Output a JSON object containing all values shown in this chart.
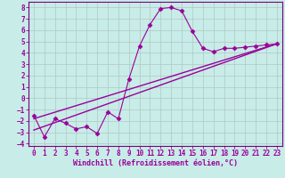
{
  "xlabel": "Windchill (Refroidissement éolien,°C)",
  "bg_color": "#c8ece8",
  "grid_color": "#b0c8c4",
  "line_color": "#990099",
  "spine_color": "#7a007a",
  "xlim": [
    -0.5,
    23.5
  ],
  "ylim": [
    -4.2,
    8.5
  ],
  "xticks": [
    0,
    1,
    2,
    3,
    4,
    5,
    6,
    7,
    8,
    9,
    10,
    11,
    12,
    13,
    14,
    15,
    16,
    17,
    18,
    19,
    20,
    21,
    22,
    23
  ],
  "yticks": [
    -4,
    -3,
    -2,
    -1,
    0,
    1,
    2,
    3,
    4,
    5,
    6,
    7,
    8
  ],
  "series1_x": [
    0,
    1,
    2,
    3,
    4,
    5,
    6,
    7,
    8,
    9,
    10,
    11,
    12,
    13,
    14,
    15,
    16,
    17,
    18,
    19,
    20,
    21,
    22,
    23
  ],
  "series1_y": [
    -1.5,
    -3.4,
    -1.8,
    -2.2,
    -2.7,
    -2.5,
    -3.1,
    -1.2,
    -1.8,
    1.7,
    4.6,
    6.5,
    7.9,
    8.0,
    7.7,
    5.9,
    4.4,
    4.1,
    4.4,
    4.4,
    4.5,
    4.6,
    4.7,
    4.8
  ],
  "series2_x": [
    0,
    23
  ],
  "series2_y": [
    -1.8,
    4.8
  ],
  "series3_x": [
    0,
    23
  ],
  "series3_y": [
    -2.8,
    4.8
  ],
  "tick_fontsize": 5.5,
  "xlabel_fontsize": 6.0
}
